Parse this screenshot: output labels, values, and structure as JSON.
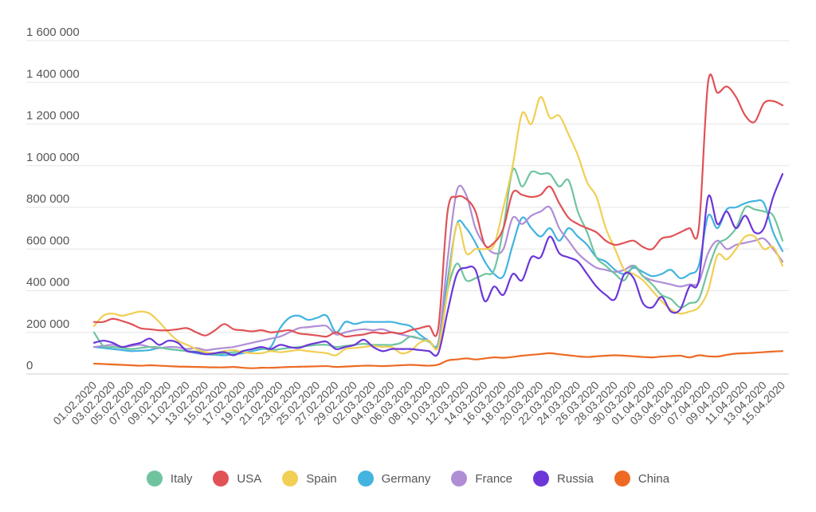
{
  "chart_data": {
    "type": "line",
    "title": "",
    "xlabel": "",
    "ylabel": "",
    "ylim": [
      0,
      1600000
    ],
    "yticks": [
      0,
      200000,
      400000,
      600000,
      800000,
      1000000,
      1200000,
      1400000,
      1600000
    ],
    "ytick_labels": [
      "0",
      "200 000",
      "400 000",
      "600 000",
      "800 000",
      "1 000 000",
      "1 200 000",
      "1 400 000",
      "1 600 000"
    ],
    "grid": true,
    "legend_position": "bottom",
    "x": [
      "01.02.2020",
      "02.02.2020",
      "03.02.2020",
      "04.02.2020",
      "05.02.2020",
      "06.02.2020",
      "07.02.2020",
      "08.02.2020",
      "09.02.2020",
      "10.02.2020",
      "11.02.2020",
      "12.02.2020",
      "13.02.2020",
      "14.02.2020",
      "15.02.2020",
      "16.02.2020",
      "17.02.2020",
      "18.02.2020",
      "19.02.2020",
      "20.02.2020",
      "21.02.2020",
      "22.02.2020",
      "23.02.2020",
      "24.02.2020",
      "25.02.2020",
      "26.02.2020",
      "27.02.2020",
      "28.02.2020",
      "29.02.2020",
      "01.03.2020",
      "02.03.2020",
      "03.03.2020",
      "04.03.2020",
      "05.03.2020",
      "06.03.2020",
      "07.03.2020",
      "08.03.2020",
      "09.03.2020",
      "10.03.2020",
      "11.03.2020",
      "12.03.2020",
      "13.03.2020",
      "14.03.2020",
      "15.03.2020",
      "16.03.2020",
      "17.03.2020",
      "18.03.2020",
      "19.03.2020",
      "20.03.2020",
      "21.03.2020",
      "22.03.2020",
      "23.03.2020",
      "24.03.2020",
      "25.03.2020",
      "26.03.2020",
      "27.03.2020",
      "28.03.2020",
      "29.03.2020",
      "30.03.2020",
      "31.03.2020",
      "01.04.2020",
      "02.04.2020",
      "03.04.2020",
      "04.04.2020",
      "05.04.2020",
      "06.04.2020",
      "07.04.2020",
      "08.04.2020",
      "09.04.2020",
      "10.04.2020",
      "11.04.2020",
      "12.04.2020",
      "13.04.2020",
      "14.04.2020",
      "15.04.2020"
    ],
    "x_tick_labels": [
      "01.02.2020",
      "03.02.2020",
      "05.02.2020",
      "07.02.2020",
      "09.02.2020",
      "11.02.2020",
      "13.02.2020",
      "15.02.2020",
      "17.02.2020",
      "19.02.2020",
      "21.02.2020",
      "23.02.2020",
      "25.02.2020",
      "27.02.2020",
      "29.02.2020",
      "02.03.2020",
      "04.03.2020",
      "06.03.2020",
      "08.03.2020",
      "10.03.2020",
      "12.03.2020",
      "14.03.2020",
      "16.03.2020",
      "18.03.2020",
      "20.03.2020",
      "22.03.2020",
      "24.03.2020",
      "26.03.2020",
      "28.03.2020",
      "30.03.2020",
      "01.04.2020",
      "03.04.2020",
      "05.04.2020",
      "07.04.2020",
      "09.04.2020",
      "11.04.2020",
      "13.04.2020",
      "15.04.2020"
    ],
    "series": [
      {
        "name": "Italy",
        "color": "#6fc49f",
        "values": [
          200000,
          135000,
          130000,
          125000,
          120000,
          125000,
          130000,
          128000,
          120000,
          115000,
          110000,
          108000,
          100000,
          95000,
          100000,
          105000,
          110000,
          120000,
          125000,
          115000,
          120000,
          125000,
          130000,
          135000,
          140000,
          140000,
          130000,
          135000,
          140000,
          145000,
          140000,
          140000,
          140000,
          150000,
          180000,
          170000,
          155000,
          140000,
          400000,
          530000,
          450000,
          460000,
          480000,
          500000,
          700000,
          980000,
          900000,
          970000,
          960000,
          960000,
          900000,
          930000,
          780000,
          680000,
          560000,
          520000,
          480000,
          450000,
          520000,
          470000,
          430000,
          380000,
          360000,
          320000,
          340000,
          360000,
          500000,
          620000,
          650000,
          700000,
          800000,
          790000,
          780000,
          760000,
          640000
        ]
      },
      {
        "name": "USA",
        "color": "#e05256",
        "values": [
          250000,
          250000,
          265000,
          255000,
          240000,
          220000,
          215000,
          210000,
          210000,
          215000,
          220000,
          200000,
          185000,
          210000,
          240000,
          215000,
          210000,
          205000,
          210000,
          200000,
          205000,
          210000,
          195000,
          190000,
          185000,
          180000,
          200000,
          180000,
          185000,
          190000,
          200000,
          195000,
          200000,
          195000,
          210000,
          220000,
          230000,
          220000,
          780000,
          850000,
          840000,
          780000,
          620000,
          630000,
          700000,
          870000,
          860000,
          850000,
          860000,
          900000,
          820000,
          750000,
          720000,
          700000,
          680000,
          640000,
          620000,
          630000,
          640000,
          610000,
          600000,
          650000,
          660000,
          680000,
          700000,
          700000,
          1400000,
          1350000,
          1380000,
          1330000,
          1240000,
          1210000,
          1300000,
          1310000,
          1290000
        ]
      },
      {
        "name": "Spain",
        "color": "#f0cf54",
        "values": [
          230000,
          280000,
          290000,
          280000,
          290000,
          300000,
          290000,
          250000,
          200000,
          160000,
          140000,
          120000,
          105000,
          100000,
          110000,
          115000,
          105000,
          100000,
          100000,
          110000,
          105000,
          110000,
          115000,
          110000,
          105000,
          100000,
          90000,
          120000,
          125000,
          130000,
          135000,
          130000,
          130000,
          100000,
          110000,
          150000,
          160000,
          130000,
          400000,
          720000,
          580000,
          600000,
          600000,
          620000,
          800000,
          1000000,
          1250000,
          1200000,
          1330000,
          1230000,
          1240000,
          1150000,
          1050000,
          920000,
          850000,
          700000,
          600000,
          500000,
          480000,
          450000,
          400000,
          350000,
          310000,
          290000,
          300000,
          320000,
          400000,
          570000,
          550000,
          600000,
          660000,
          660000,
          600000,
          610000,
          520000
        ]
      },
      {
        "name": "Germany",
        "color": "#43b3e0",
        "values": [
          130000,
          125000,
          120000,
          115000,
          110000,
          112000,
          115000,
          125000,
          120000,
          115000,
          110000,
          100000,
          95000,
          92000,
          90000,
          95000,
          100000,
          110000,
          120000,
          130000,
          220000,
          270000,
          280000,
          260000,
          270000,
          280000,
          200000,
          250000,
          240000,
          250000,
          250000,
          250000,
          250000,
          240000,
          230000,
          190000,
          160000,
          150000,
          450000,
          720000,
          700000,
          630000,
          540000,
          480000,
          470000,
          620000,
          750000,
          700000,
          660000,
          700000,
          640000,
          700000,
          660000,
          620000,
          560000,
          540000,
          500000,
          480000,
          510000,
          490000,
          470000,
          480000,
          500000,
          460000,
          480000,
          520000,
          760000,
          700000,
          790000,
          800000,
          820000,
          830000,
          820000,
          680000,
          590000
        ]
      },
      {
        "name": "France",
        "color": "#b08ed6",
        "values": [
          130000,
          135000,
          140000,
          130000,
          135000,
          140000,
          130000,
          125000,
          130000,
          128000,
          120000,
          125000,
          115000,
          120000,
          125000,
          130000,
          140000,
          150000,
          160000,
          170000,
          180000,
          200000,
          220000,
          225000,
          230000,
          230000,
          190000,
          200000,
          210000,
          215000,
          210000,
          215000,
          200000,
          190000,
          180000,
          170000,
          160000,
          150000,
          550000,
          880000,
          860000,
          700000,
          620000,
          580000,
          600000,
          750000,
          720000,
          760000,
          780000,
          800000,
          700000,
          640000,
          580000,
          540000,
          510000,
          500000,
          490000,
          500000,
          520000,
          470000,
          450000,
          440000,
          430000,
          420000,
          430000,
          440000,
          580000,
          640000,
          600000,
          620000,
          630000,
          640000,
          650000,
          600000,
          540000
        ]
      },
      {
        "name": "Russia",
        "color": "#6c36d8",
        "values": [
          150000,
          160000,
          150000,
          130000,
          140000,
          150000,
          170000,
          140000,
          160000,
          150000,
          110000,
          105000,
          95000,
          100000,
          105000,
          90000,
          110000,
          120000,
          130000,
          120000,
          140000,
          130000,
          125000,
          140000,
          150000,
          155000,
          120000,
          130000,
          140000,
          165000,
          130000,
          110000,
          120000,
          120000,
          120000,
          115000,
          110000,
          100000,
          300000,
          480000,
          510000,
          500000,
          350000,
          420000,
          380000,
          480000,
          450000,
          560000,
          560000,
          660000,
          580000,
          560000,
          540000,
          480000,
          420000,
          380000,
          360000,
          480000,
          460000,
          340000,
          320000,
          370000,
          300000,
          310000,
          420000,
          450000,
          850000,
          720000,
          780000,
          700000,
          760000,
          680000,
          700000,
          850000,
          960000
        ]
      },
      {
        "name": "China",
        "color": "#ee6a24",
        "values": [
          50000,
          48000,
          46000,
          44000,
          42000,
          40000,
          42000,
          40000,
          38000,
          36000,
          35000,
          34000,
          33000,
          32000,
          32000,
          34000,
          30000,
          28000,
          30000,
          30000,
          32000,
          34000,
          35000,
          36000,
          37000,
          38000,
          34000,
          36000,
          38000,
          40000,
          40000,
          38000,
          40000,
          42000,
          44000,
          42000,
          40000,
          45000,
          65000,
          70000,
          75000,
          70000,
          75000,
          80000,
          78000,
          82000,
          88000,
          92000,
          96000,
          100000,
          95000,
          90000,
          85000,
          82000,
          85000,
          88000,
          90000,
          88000,
          85000,
          82000,
          80000,
          84000,
          86000,
          88000,
          80000,
          90000,
          85000,
          84000,
          92000,
          98000,
          100000,
          102000,
          105000,
          108000,
          110000
        ]
      }
    ]
  }
}
